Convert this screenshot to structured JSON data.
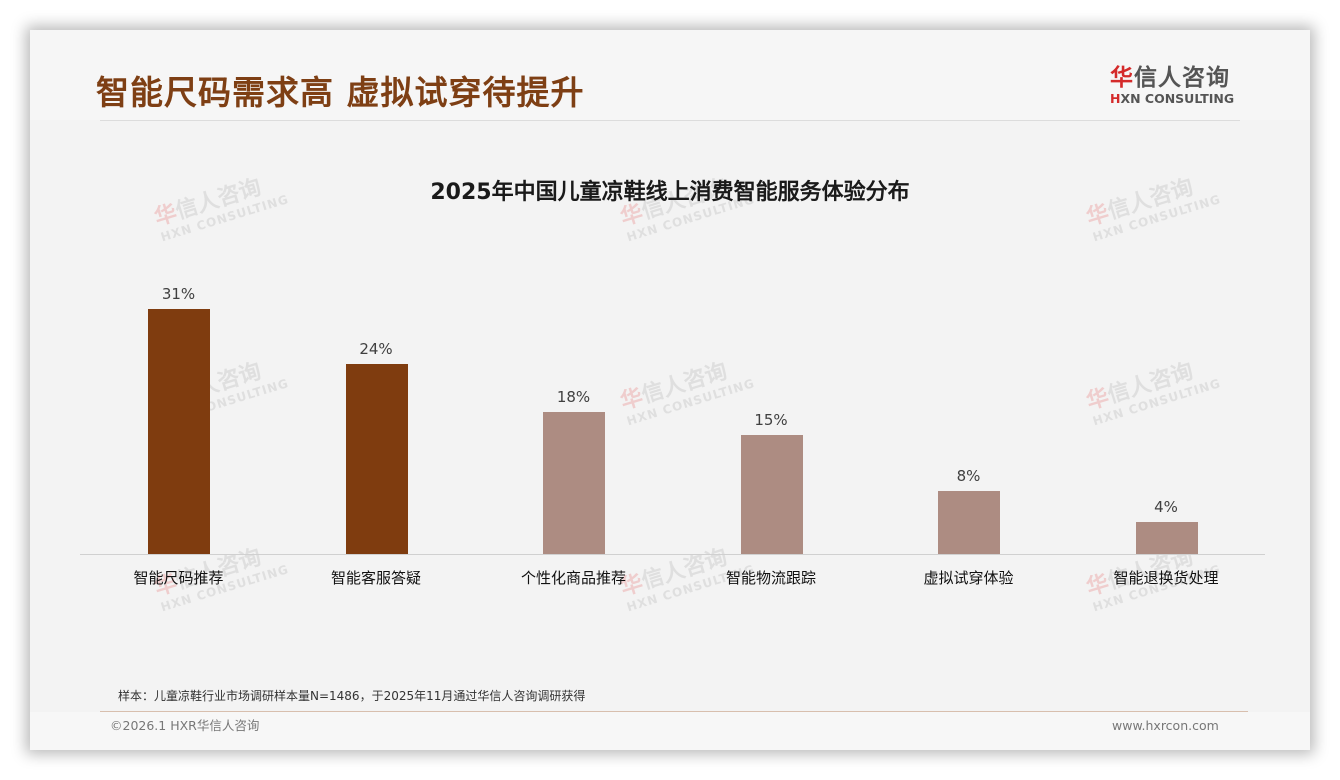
{
  "header": {
    "title": "智能尺码需求高 虚拟试穿待提升",
    "logo": {
      "cn_first": "华",
      "cn_rest": "信人咨询",
      "en_first": "H",
      "en_rest": "XN CONSULTING"
    }
  },
  "watermark": {
    "cn_first": "华",
    "cn_rest": "信人咨询",
    "en": "HXN CONSULTING"
  },
  "chart_data": {
    "type": "bar",
    "title": "2025年中国儿童凉鞋线上消费智能服务体验分布",
    "categories": [
      "智能尺码推荐",
      "智能客服答疑",
      "个性化商品推荐",
      "智能物流跟踪",
      "虚拟试穿体验",
      "智能退换货处理"
    ],
    "values": [
      31,
      24,
      18,
      15,
      8,
      4
    ],
    "value_labels": [
      "31%",
      "24%",
      "18%",
      "15%",
      "8%",
      "4%"
    ],
    "unit": "%",
    "colors": [
      "#7f3c0f",
      "#7f3c0f",
      "#ad8c82",
      "#ad8c82",
      "#ad8c82",
      "#ad8c82"
    ],
    "xlabel": "",
    "ylabel": "",
    "ylim": [
      0,
      31
    ],
    "grid": false,
    "legend": "none"
  },
  "footer": {
    "note": "样本：儿童凉鞋行业市场调研样本量N=1486，于2025年11月通过华信人咨询调研获得",
    "copyright": "©2026.1 HXR华信人咨询",
    "website": "www.hxrcon.com"
  }
}
